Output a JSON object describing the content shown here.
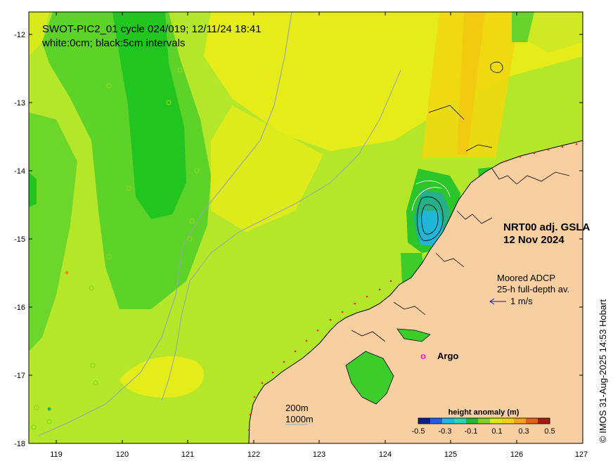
{
  "title_line1": "SWOT-PIC2_01 cycle 024/019; 12/11/24 18:41",
  "title_line2": "white:0cm; black:5cm intervals",
  "product_name": "NRT00 adj. GSLA",
  "product_date": "12 Nov 2024",
  "adcp_label_line1": "Moored ADCP",
  "adcp_label_line2": "25-h full-depth av.",
  "adcp_scale_label": "1 m/s",
  "argo_marker": "o",
  "argo_label": "Argo",
  "isobath_shallow": "200m",
  "isobath_deep": "1000m",
  "colorbar_title": "height anomaly (m)",
  "colorbar_ticks": [
    "-0.5",
    "-0.3",
    "-0.1",
    "0.1",
    "0.3",
    "0.5"
  ],
  "colorbar_colors": [
    "#0a1f8c",
    "#1f5fe0",
    "#22b6e6",
    "#2ed1b8",
    "#1fb83a",
    "#7fd12a",
    "#d6ea18",
    "#f0d20e",
    "#f3a21a",
    "#e0621a",
    "#a01e10"
  ],
  "credit": "© IMOS 31-Aug-2025 14:53 Hobart",
  "x_ticks": [
    "119",
    "120",
    "121",
    "122",
    "123",
    "124",
    "125",
    "126",
    "127"
  ],
  "y_ticks": [
    "-12",
    "-13",
    "-14",
    "-15",
    "-16",
    "-17",
    "-18"
  ],
  "colors": {
    "land": "#f8cfa1",
    "ocean_base": "#b4e62a",
    "ocean_yellow": "#e8ec1a",
    "ocean_green": "#5dd32a",
    "ocean_dark_green": "#1fc31f",
    "argo": "#e020c8",
    "adcp_arrow": "#1010c0"
  }
}
